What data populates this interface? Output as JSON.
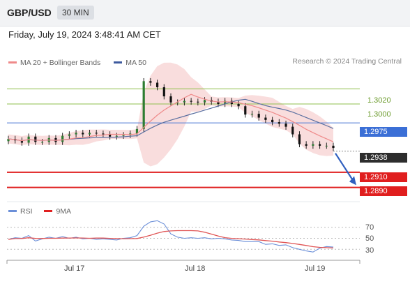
{
  "header": {
    "symbol": "GBP/USD",
    "timeframe": "30 MIN"
  },
  "datetime": "Friday, July 19, 2024 3:48:41 AM CET",
  "legend": {
    "ma20": "MA 20 + Bollinger Bands",
    "ma50": "MA 50",
    "research": "Research © 2024 Trading Central"
  },
  "rsi_legend": {
    "rsi": "RSI",
    "ma": "9MA"
  },
  "colors": {
    "resistance": "#8fbf4d",
    "pivot": "#4a78d4",
    "support": "#e02020",
    "current": "#333333",
    "ma20": "#ef8a8a",
    "ma50": "#5a6fa0",
    "bollinger_fill": "#f8d4d4",
    "candle_up": "#2e7d32",
    "candle_down": "#111111",
    "rsi": "#6b8fd8",
    "rsi_ma": "#e05555"
  },
  "levels": [
    {
      "label": "1.3020",
      "type": "resistance"
    },
    {
      "label": "1.3000",
      "type": "resistance"
    },
    {
      "label": "1.2975",
      "type": "pivot"
    },
    {
      "label": "1.2938",
      "type": "current"
    },
    {
      "label": "1.2910",
      "type": "support"
    },
    {
      "label": "1.2890",
      "type": "support"
    }
  ],
  "rsi_ticks": [
    "70",
    "50",
    "30"
  ],
  "xaxis": [
    "Jul 17",
    "Jul 18",
    "Jul 19"
  ],
  "chart_data": {
    "type": "candlestick",
    "title": "GBP/USD",
    "timeframe": "30 MIN",
    "ylim": [
      1.2875,
      1.3045
    ],
    "price_series": [
      1.2954,
      1.2952,
      1.2949,
      1.2957,
      1.295,
      1.295,
      1.2955,
      1.295,
      1.2958,
      1.296,
      1.2962,
      1.296,
      1.2962,
      1.2961,
      1.296,
      1.2957,
      1.2958,
      1.2959,
      1.2961,
      1.2967,
      1.303,
      1.3028,
      1.3022,
      1.301,
      1.3002,
      1.3002,
      1.3004,
      1.3003,
      1.3002,
      1.3005,
      1.3003,
      1.3,
      1.3004,
      1.3,
      1.2997,
      1.2986,
      1.2987,
      1.2982,
      1.2979,
      1.2976,
      1.2974,
      1.297,
      1.296,
      1.2947,
      1.2945,
      1.2947,
      1.2945,
      1.2945,
      1.2942
    ],
    "series": [
      {
        "name": "MA 20 + Bollinger Bands",
        "role": "ma20"
      },
      {
        "name": "MA 50",
        "role": "ma50"
      }
    ],
    "levels": [
      1.302,
      1.3,
      1.2975,
      1.2938,
      1.291,
      1.289
    ],
    "rsi": {
      "name": "RSI",
      "ma_name": "9MA",
      "ylim": [
        10,
        90
      ],
      "ticks": [
        70,
        50,
        30
      ],
      "values": [
        48,
        51,
        50,
        55,
        45,
        49,
        52,
        50,
        53,
        50,
        52,
        49,
        50,
        48,
        49,
        48,
        47,
        50,
        51,
        55,
        72,
        80,
        82,
        76,
        58,
        52,
        50,
        51,
        50,
        51,
        49,
        50,
        49,
        47,
        46,
        44,
        44,
        44,
        39,
        40,
        37,
        38,
        33,
        30,
        27,
        25,
        32,
        35,
        34
      ]
    },
    "x_ticks": [
      "Jul 17",
      "Jul 18",
      "Jul 19"
    ]
  }
}
